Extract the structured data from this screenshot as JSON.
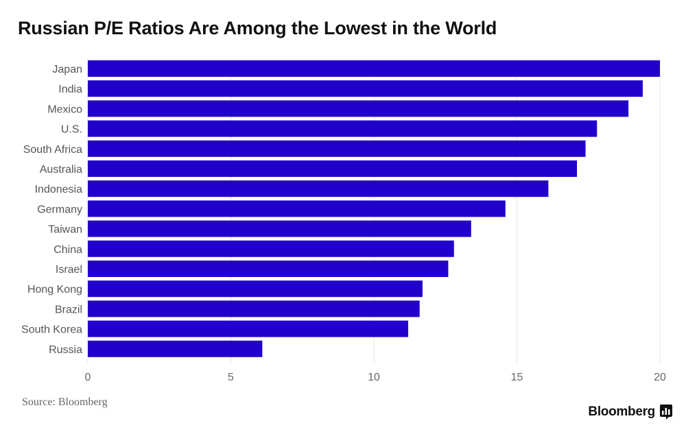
{
  "title": "Russian P/E Ratios Are Among the Lowest in the World",
  "source": "Source: Bloomberg",
  "brand": {
    "name": "Bloomberg",
    "icon": "bloomberg-terminal-icon"
  },
  "colors": {
    "bar": "#2200cc",
    "grid": "#e6e6e6",
    "label": "#555555"
  },
  "chart_data": {
    "type": "bar",
    "orientation": "horizontal",
    "title": "Russian P/E Ratios Are Among the Lowest in the World",
    "xlabel": "",
    "ylabel": "",
    "categories": [
      "Japan",
      "India",
      "Mexico",
      "U.S.",
      "South Africa",
      "Australia",
      "Indonesia",
      "Germany",
      "Taiwan",
      "China",
      "Israel",
      "Hong Kong",
      "Brazil",
      "South Korea",
      "Russia"
    ],
    "values": [
      20.0,
      19.4,
      18.9,
      17.8,
      17.4,
      17.1,
      16.1,
      14.6,
      13.4,
      12.8,
      12.6,
      11.7,
      11.6,
      11.2,
      6.1
    ],
    "xlim": [
      0,
      20
    ],
    "xticks": [
      0,
      5,
      10,
      15,
      20
    ],
    "grid": true,
    "legend": "none"
  }
}
